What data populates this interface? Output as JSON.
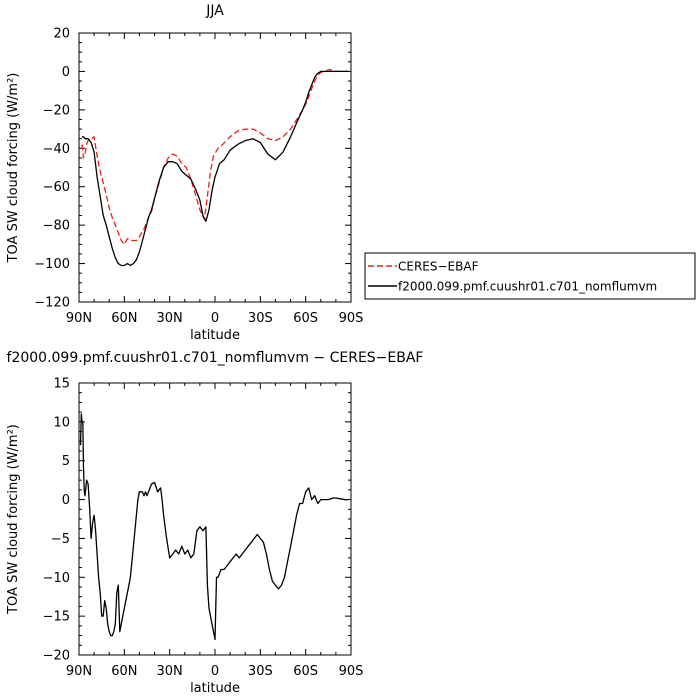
{
  "chart_data": [
    {
      "type": "line",
      "title": "JJA",
      "xlabel": "latitude",
      "ylabel": "TOA SW cloud forcing (W/m²)",
      "xlim": [
        90,
        -90
      ],
      "ylim": [
        -120,
        20
      ],
      "x_ticks": [
        90,
        60,
        30,
        0,
        -30,
        -60,
        -90
      ],
      "x_tick_labels": [
        "90N",
        "60N",
        "30N",
        "0",
        "30S",
        "60S",
        "90S"
      ],
      "y_ticks": [
        20,
        0,
        -20,
        -40,
        -60,
        -80,
        -100,
        -120
      ],
      "y_tick_labels": [
        "20",
        "0",
        "−20",
        "−40",
        "−60",
        "−80",
        "−100",
        "−120"
      ],
      "legend_placement": "right",
      "series": [
        {
          "name": "CERES−EBAF",
          "color": "#e8211c",
          "dash": "dashed",
          "x": [
            88,
            87,
            86,
            85,
            84,
            82,
            80,
            78,
            76,
            74,
            72,
            70,
            68,
            66,
            64,
            62,
            60,
            58,
            55,
            52,
            50,
            47,
            44,
            42,
            40,
            37,
            34,
            31,
            28,
            25,
            22,
            19,
            16,
            13,
            10,
            7,
            5,
            3,
            1,
            -2,
            -5,
            -10,
            -15,
            -20,
            -25,
            -30,
            -35,
            -40,
            -45,
            -50,
            -55,
            -58,
            -60,
            -62,
            -64,
            -66,
            -68,
            -70,
            -72,
            -74,
            -76,
            -78,
            -80,
            -83,
            -86,
            -88
          ],
          "y": [
            -38,
            -45,
            -43,
            -38,
            -36,
            -35,
            -34,
            -44,
            -52,
            -58,
            -64,
            -71,
            -76,
            -80,
            -84,
            -88,
            -90,
            -87,
            -88,
            -88,
            -86,
            -82,
            -76,
            -73,
            -66,
            -58,
            -50,
            -45,
            -43,
            -44,
            -48,
            -50,
            -56,
            -64,
            -72,
            -77,
            -65,
            -52,
            -44,
            -40,
            -38,
            -34,
            -31,
            -30,
            -30,
            -32,
            -35,
            -36,
            -34,
            -30,
            -24,
            -20,
            -17,
            -13,
            -9,
            -5,
            -2,
            -0.5,
            0,
            0.5,
            1,
            0.5,
            0,
            0,
            0,
            0
          ]
        },
        {
          "name": "f2000.099.pmf.cuushr01.c701_nomflumvm",
          "color": "#000000",
          "dash": "solid",
          "x": [
            88,
            87,
            86,
            84,
            82,
            80,
            78,
            76,
            74,
            72,
            70,
            68,
            66,
            64,
            62,
            60,
            58,
            56,
            54,
            52,
            50,
            48,
            46,
            44,
            42,
            40,
            37,
            34,
            31,
            28,
            25,
            22,
            19,
            16,
            13,
            10,
            8,
            6,
            4,
            2,
            0,
            -3,
            -6,
            -10,
            -15,
            -20,
            -25,
            -30,
            -35,
            -40,
            -45,
            -50,
            -55,
            -58,
            -60,
            -62,
            -64,
            -66,
            -68,
            -70,
            -72,
            -75,
            -78,
            -80,
            -83,
            -86,
            -88
          ],
          "y": [
            -34,
            -34,
            -35,
            -35,
            -37,
            -42,
            -55,
            -65,
            -75,
            -80,
            -86,
            -92,
            -97,
            -100,
            -101,
            -101,
            -100,
            -101,
            -100,
            -98,
            -94,
            -88,
            -82,
            -76,
            -72,
            -66,
            -57,
            -50,
            -47,
            -47,
            -48,
            -52,
            -54,
            -56,
            -61,
            -67,
            -75,
            -78,
            -72,
            -62,
            -55,
            -48,
            -46,
            -41,
            -38,
            -36,
            -35,
            -37,
            -43,
            -46,
            -42,
            -34,
            -25,
            -20,
            -16,
            -11,
            -7,
            -3,
            -1,
            0,
            0,
            0,
            0,
            0,
            0,
            0,
            0
          ]
        }
      ]
    },
    {
      "type": "line",
      "title": "f2000.099.pmf.cuushr01.c701_nomflumvm − CERES−EBAF",
      "xlabel": "latitude",
      "ylabel": "TOA SW cloud forcing (W/m²)",
      "xlim": [
        90,
        -90
      ],
      "ylim": [
        -20,
        15
      ],
      "x_ticks": [
        90,
        60,
        30,
        0,
        -30,
        -60,
        -90
      ],
      "x_tick_labels": [
        "90N",
        "60N",
        "30N",
        "0",
        "30S",
        "60S",
        "90S"
      ],
      "y_ticks": [
        15,
        10,
        5,
        0,
        -5,
        -10,
        -15,
        -20
      ],
      "y_tick_labels": [
        "15",
        "10",
        "5",
        "0",
        "−5",
        "−10",
        "−15",
        "−20"
      ],
      "series": [
        {
          "color": "#000000",
          "dash": "solid",
          "x": [
            89,
            88.5,
            88,
            87.5,
            87,
            86.5,
            86,
            85,
            84,
            83,
            82,
            81,
            80,
            79,
            78,
            77,
            76,
            75,
            74,
            73,
            72,
            71,
            70,
            69,
            68,
            67,
            66,
            65,
            64,
            63,
            62,
            61,
            60,
            59,
            58,
            57,
            56,
            55,
            54,
            53,
            52,
            51,
            50,
            49,
            48,
            47,
            46,
            45,
            44,
            42,
            40,
            38,
            36,
            35,
            34,
            32,
            30,
            28,
            26,
            24,
            22,
            20,
            18,
            16,
            14,
            12,
            10,
            8,
            6,
            5,
            4,
            3,
            2,
            1,
            0,
            -1,
            -2,
            -4,
            -6,
            -8,
            -10,
            -12,
            -14,
            -16,
            -18,
            -20,
            -22,
            -24,
            -26,
            -28,
            -30,
            -32,
            -34,
            -36,
            -38,
            -40,
            -42,
            -44,
            -46,
            -48,
            -50,
            -52,
            -54,
            -56,
            -58,
            -60,
            -62,
            -64,
            -66,
            -68,
            -70,
            -72,
            -75,
            -78,
            -80,
            -83,
            -86,
            -88
          ],
          "y": [
            7,
            11,
            10,
            10,
            4,
            1,
            0.5,
            2.5,
            2,
            -1,
            -5,
            -3,
            -2,
            -4,
            -7,
            -10,
            -12,
            -15,
            -15,
            -13,
            -14,
            -16,
            -17,
            -17.5,
            -17.5,
            -17,
            -16,
            -12,
            -11,
            -17,
            -16,
            -15,
            -14,
            -13,
            -12,
            -11,
            -10,
            -8,
            -6,
            -4,
            -2,
            0,
            1,
            1,
            1,
            0.5,
            1,
            0.5,
            1,
            2,
            2.2,
            1,
            1.5,
            0,
            -2,
            -5,
            -7.5,
            -7,
            -6.5,
            -7,
            -6,
            -7,
            -6.5,
            -7.5,
            -7,
            -4,
            -3.5,
            -4,
            -3.5,
            -11,
            -14,
            -15,
            -16,
            -17,
            -18,
            -10,
            -10,
            -9,
            -9,
            -8.5,
            -8,
            -7.5,
            -7,
            -7.5,
            -7,
            -6.5,
            -6,
            -5.5,
            -5,
            -4.5,
            -5,
            -5.5,
            -7,
            -9,
            -10.5,
            -11,
            -11.5,
            -11,
            -10,
            -8,
            -6,
            -4,
            -2,
            -0.5,
            -0.5,
            1,
            1.5,
            0,
            0.5,
            -0.5,
            0,
            0,
            0,
            0.2,
            0.2,
            0.1,
            0,
            0
          ]
        }
      ]
    }
  ]
}
